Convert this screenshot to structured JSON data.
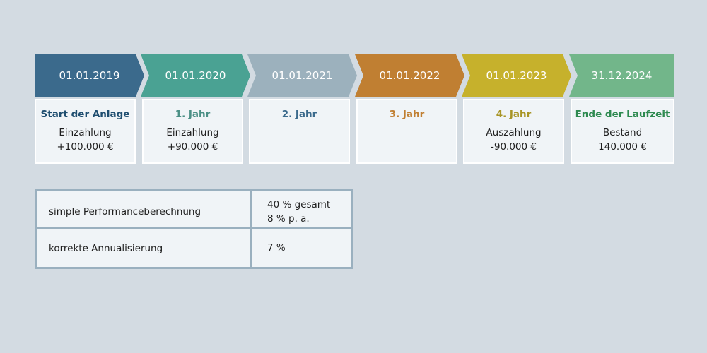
{
  "timeline": [
    {
      "date": "01.01.2019",
      "color": "#3b6a8c",
      "head": "Start der Anlage",
      "head_color": "#1f4e70",
      "lines": [
        "Einzahlung",
        "+100.000 €"
      ]
    },
    {
      "date": "01.01.2020",
      "color": "#4aa293",
      "head": "1. Jahr",
      "head_color": "#4a8f85",
      "lines": [
        "Einzahlung",
        "+90.000 €"
      ]
    },
    {
      "date": "01.01.2021",
      "color": "#9cb1bd",
      "head": "2. Jahr",
      "head_color": "#3b6a8c",
      "lines": []
    },
    {
      "date": "01.01.2022",
      "color": "#c07f32",
      "head": "3. Jahr",
      "head_color": "#c07f32",
      "lines": []
    },
    {
      "date": "01.01.2023",
      "color": "#c6b12c",
      "head": "4. Jahr",
      "head_color": "#a89526",
      "lines": [
        "Auszahlung",
        "-90.000 €"
      ]
    },
    {
      "date": "31.12.2024",
      "color": "#72b68a",
      "head": "Ende der Laufzeit",
      "head_color": "#2e8a50",
      "lines": [
        "Bestand",
        "140.000 €"
      ]
    }
  ],
  "table": {
    "rows": [
      {
        "label": "simple Performanceberechnung",
        "values": [
          "40 % gesamt",
          "8 % p. a."
        ]
      },
      {
        "label": "korrekte Annualisierung",
        "values": [
          "7 %"
        ]
      }
    ]
  }
}
